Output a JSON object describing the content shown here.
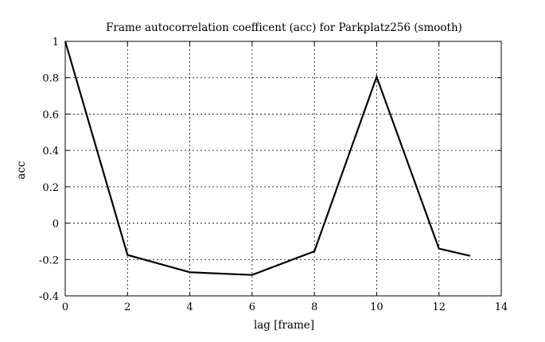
{
  "chart_data": {
    "type": "line",
    "title": "Frame autocorrelation coefficent (acc) for Parkplatz256 (smooth)",
    "xlabel": "lag [frame]",
    "ylabel": "acc",
    "xlim": [
      0,
      14
    ],
    "ylim": [
      -0.4,
      1
    ],
    "x_ticks": [
      0,
      2,
      4,
      6,
      8,
      10,
      12,
      14
    ],
    "x_tick_labels": [
      "0",
      "2",
      "4",
      "6",
      "8",
      "10",
      "12",
      "14"
    ],
    "y_ticks": [
      -0.4,
      -0.2,
      0,
      0.2,
      0.4,
      0.6,
      0.8,
      1
    ],
    "y_tick_labels": [
      "-0.4",
      "-0.2",
      "0",
      "0.2",
      "0.4",
      "0.6",
      "0.8",
      "1"
    ],
    "grid": true,
    "series": [
      {
        "x": [
          0,
          2,
          4,
          6,
          8,
          10,
          12,
          13
        ],
        "values": [
          1.0,
          -0.175,
          -0.27,
          -0.285,
          -0.155,
          0.805,
          -0.14,
          -0.18
        ]
      }
    ]
  }
}
